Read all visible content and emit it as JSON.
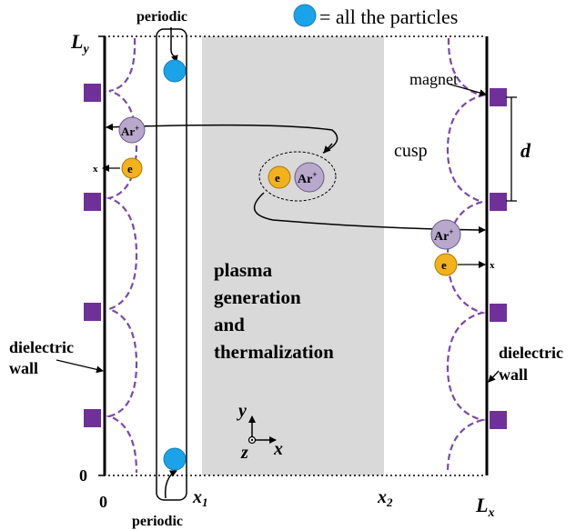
{
  "legend": {
    "label": "= all the particles",
    "color": "#1aa3e8"
  },
  "labels": {
    "periodic_top": "periodic",
    "periodic_bottom": "periodic",
    "magnet": "magnet",
    "cusp": "cusp",
    "d": "d",
    "dielectric_left": "dielectric",
    "wall_left": "wall",
    "dielectric_right": "dielectric",
    "wall_right": "wall",
    "plasma_line1": "plasma",
    "plasma_line2": "generation",
    "plasma_line3": "and",
    "plasma_line4": "thermalization",
    "x_small_left": "x",
    "x_small_right": "x"
  },
  "axes": {
    "Ly": "L",
    "Ly_sub": "y",
    "zero_y": "0",
    "zero_x": "0",
    "x1": "x",
    "x1_sub": "1",
    "x2": "x",
    "x2_sub": "2",
    "Lx": "L",
    "Lx_sub": "x"
  },
  "coord_axes": {
    "y": "y",
    "z": "z",
    "x": "x"
  },
  "particles": {
    "ar_label": "Ar",
    "ar_charge": "+",
    "e_label": "e"
  },
  "colors": {
    "magnet": "#70309a",
    "cusp": "#7a4aa8",
    "ion": "#b8a8cc",
    "electron": "#f2b21c",
    "plasma_region": "#d9d9d9"
  }
}
